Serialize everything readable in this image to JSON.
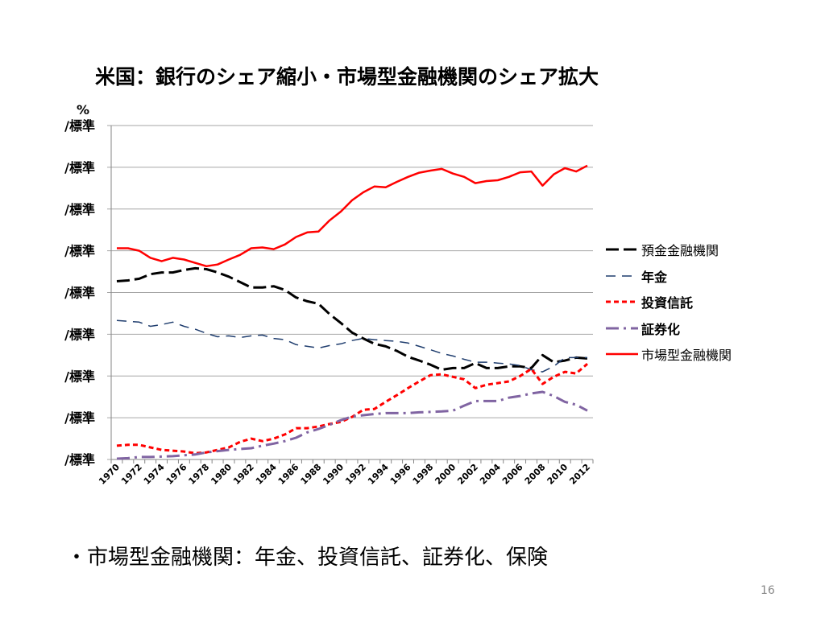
{
  "title": "米国：銀行のシェア縮小・市場型金融機関のシェア拡大",
  "note": "・市場型金融機関：年金、投資信託、証券化、保険",
  "page_number": "16",
  "chart_data": {
    "type": "line",
    "title": "米国：銀行のシェア縮小・市場型金融機関のシェア拡大",
    "ylabel": "%",
    "ylim": [
      0,
      8
    ],
    "y_ticks": [
      "/標準",
      "/標準",
      "/標準",
      "/標準",
      "/標準",
      "/標準",
      "/標準",
      "/標準",
      "/標準"
    ],
    "grid": true,
    "legend_position": "right",
    "x": [
      1970,
      1971,
      1972,
      1973,
      1974,
      1975,
      1976,
      1977,
      1978,
      1979,
      1980,
      1981,
      1982,
      1983,
      1984,
      1985,
      1986,
      1987,
      1988,
      1989,
      1990,
      1991,
      1992,
      1993,
      1994,
      1995,
      1996,
      1997,
      1998,
      1999,
      2000,
      2001,
      2002,
      2003,
      2004,
      2005,
      2006,
      2007,
      2008,
      2009,
      2010,
      2011,
      2012
    ],
    "x_tick_labels": [
      "1970",
      "1972",
      "1974",
      "1976",
      "1978",
      "1980",
      "1982",
      "1984",
      "1986",
      "1988",
      "1990",
      "1992",
      "1994",
      "1996",
      "1998",
      "2000",
      "2002",
      "2004",
      "2006",
      "2008",
      "2010",
      "2012"
    ],
    "series": [
      {
        "name": "預金金融機関",
        "color": "#000000",
        "dash": "long-dash",
        "values": [
          4.27,
          4.29,
          4.33,
          4.44,
          4.48,
          4.48,
          4.54,
          4.58,
          4.56,
          4.48,
          4.38,
          4.25,
          4.12,
          4.12,
          4.15,
          4.06,
          3.88,
          3.79,
          3.73,
          3.48,
          3.27,
          3.04,
          2.9,
          2.77,
          2.71,
          2.6,
          2.46,
          2.37,
          2.27,
          2.15,
          2.19,
          2.19,
          2.31,
          2.19,
          2.19,
          2.23,
          2.23,
          2.19,
          2.5,
          2.33,
          2.37,
          2.44,
          2.42
        ]
      },
      {
        "name": "年金",
        "color": "#1f3d6e",
        "dash": "dash",
        "values": [
          3.33,
          3.31,
          3.29,
          3.19,
          3.23,
          3.29,
          3.19,
          3.12,
          3.02,
          2.94,
          2.96,
          2.92,
          2.96,
          2.98,
          2.9,
          2.87,
          2.75,
          2.71,
          2.67,
          2.73,
          2.77,
          2.85,
          2.9,
          2.87,
          2.85,
          2.83,
          2.79,
          2.71,
          2.63,
          2.54,
          2.48,
          2.4,
          2.33,
          2.33,
          2.31,
          2.29,
          2.25,
          2.15,
          2.1,
          2.23,
          2.44,
          2.44,
          2.44
        ]
      },
      {
        "name": "投資信託",
        "color": "#ff0000",
        "dash": "short-dash",
        "values": [
          0.33,
          0.35,
          0.35,
          0.29,
          0.23,
          0.21,
          0.19,
          0.15,
          0.17,
          0.23,
          0.29,
          0.42,
          0.5,
          0.44,
          0.5,
          0.6,
          0.75,
          0.75,
          0.79,
          0.85,
          0.9,
          1.02,
          1.19,
          1.21,
          1.38,
          1.54,
          1.71,
          1.87,
          2.02,
          2.04,
          1.98,
          1.92,
          1.71,
          1.79,
          1.83,
          1.87,
          2.0,
          2.17,
          1.81,
          1.98,
          2.1,
          2.06,
          2.29
        ]
      },
      {
        "name": "証券化",
        "color": "#8064a2",
        "dash": "dash-dot",
        "values": [
          0.02,
          0.03,
          0.06,
          0.06,
          0.07,
          0.08,
          0.1,
          0.12,
          0.17,
          0.2,
          0.23,
          0.25,
          0.27,
          0.33,
          0.38,
          0.44,
          0.52,
          0.65,
          0.73,
          0.83,
          0.94,
          1.03,
          1.06,
          1.09,
          1.11,
          1.11,
          1.11,
          1.13,
          1.14,
          1.15,
          1.17,
          1.29,
          1.4,
          1.4,
          1.4,
          1.48,
          1.52,
          1.58,
          1.62,
          1.52,
          1.38,
          1.31,
          1.17
        ]
      },
      {
        "name": "市場型金融機関",
        "color": "#ff0000",
        "dash": "solid",
        "values": [
          5.06,
          5.06,
          5.0,
          4.83,
          4.75,
          4.83,
          4.79,
          4.71,
          4.63,
          4.67,
          4.79,
          4.9,
          5.06,
          5.08,
          5.04,
          5.15,
          5.33,
          5.44,
          5.46,
          5.73,
          5.94,
          6.21,
          6.4,
          6.54,
          6.52,
          6.65,
          6.77,
          6.87,
          6.92,
          6.96,
          6.85,
          6.77,
          6.62,
          6.67,
          6.69,
          6.77,
          6.88,
          6.9,
          6.56,
          6.83,
          6.98,
          6.9,
          7.04
        ]
      }
    ]
  }
}
